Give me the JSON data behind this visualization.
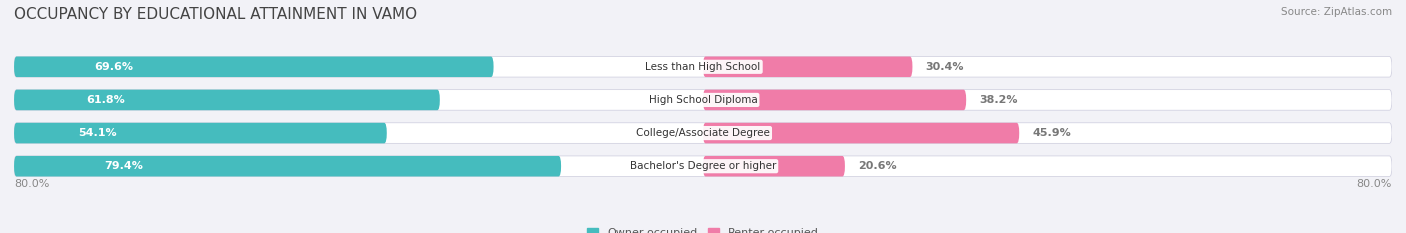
{
  "title": "OCCUPANCY BY EDUCATIONAL ATTAINMENT IN VAMO",
  "source": "Source: ZipAtlas.com",
  "categories": [
    "Less than High School",
    "High School Diploma",
    "College/Associate Degree",
    "Bachelor's Degree or higher"
  ],
  "owner_pct": [
    69.6,
    61.8,
    54.1,
    79.4
  ],
  "renter_pct": [
    30.4,
    38.2,
    45.9,
    20.6
  ],
  "owner_color": "#45BCBE",
  "renter_color": "#F07CA8",
  "bar_height": 0.62,
  "bg_bar_color": "#e8e8ee",
  "x_axis_left_label": "80.0%",
  "x_axis_right_label": "80.0%",
  "bg_color": "#f2f2f7",
  "title_fontsize": 11,
  "source_fontsize": 7.5,
  "label_fontsize": 8,
  "category_fontsize": 7.5,
  "legend_fontsize": 8,
  "tick_fontsize": 8,
  "total_span": 80.0
}
